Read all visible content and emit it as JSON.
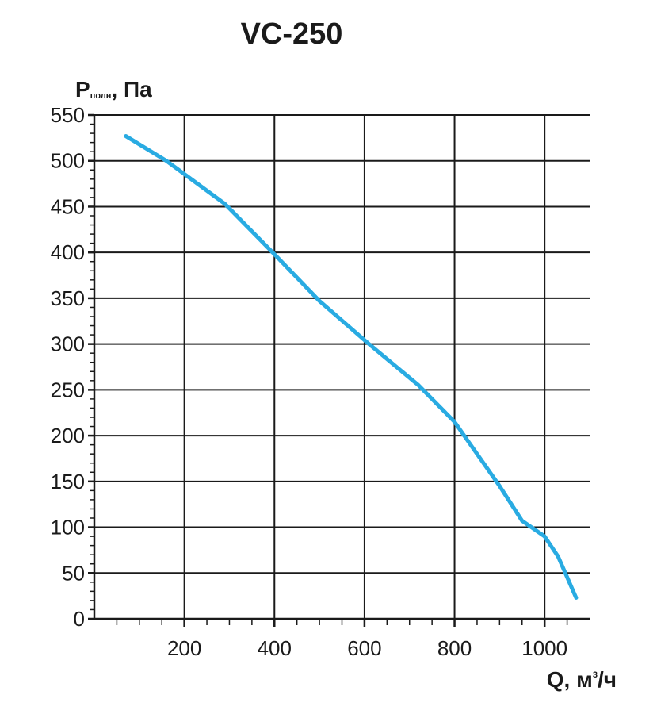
{
  "chart_data": {
    "type": "line",
    "title": "VC-250",
    "ylabel": {
      "main": "P",
      "sub": "полн",
      "rest": ", Па"
    },
    "xlabel": {
      "main": "Q, м",
      "sup": "3",
      "rest": "/ч"
    },
    "xlim": [
      0,
      1100
    ],
    "ylim": [
      0,
      550
    ],
    "x_ticks": [
      200,
      400,
      600,
      800,
      1000
    ],
    "y_ticks": [
      0,
      50,
      100,
      150,
      200,
      250,
      300,
      350,
      400,
      450,
      500,
      550
    ],
    "grid": true,
    "colors": {
      "line": "#29abe2",
      "grid": "#1a1a1a"
    },
    "series": [
      {
        "x": [
          70,
          160,
          290,
          400,
          500,
          610,
          720,
          800,
          850,
          900,
          950,
          1000,
          1030,
          1070
        ],
        "y": [
          527,
          500,
          453,
          398,
          347,
          300,
          255,
          215,
          180,
          145,
          107,
          90,
          68,
          23
        ]
      }
    ]
  }
}
